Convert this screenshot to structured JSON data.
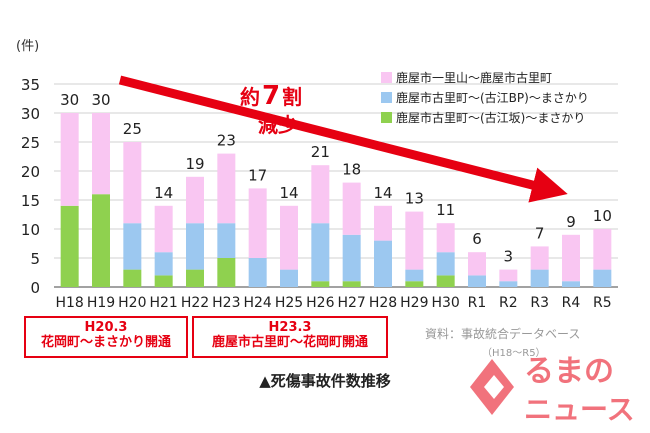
{
  "chart_data": {
    "type": "bar",
    "stacked": true,
    "y_unit": "(件)",
    "categories": [
      "H18",
      "H19",
      "H20",
      "H21",
      "H22",
      "H23",
      "H24",
      "H25",
      "H26",
      "H27",
      "H28",
      "H29",
      "H30",
      "R1",
      "R2",
      "R3",
      "R4",
      "R5"
    ],
    "totals": [
      30,
      30,
      25,
      14,
      19,
      23,
      17,
      14,
      21,
      18,
      14,
      13,
      11,
      6,
      3,
      7,
      9,
      10
    ],
    "series": [
      {
        "name": "鹿屋市古里町～(古江坂)～まさかり",
        "color": "#8fd14f",
        "values": [
          14,
          16,
          3,
          2,
          3,
          5,
          0,
          0,
          1,
          1,
          0,
          1,
          2,
          0,
          0,
          0,
          0,
          0
        ]
      },
      {
        "name": "鹿屋市古里町～(古江BP)～まさかり",
        "color": "#9cc8f0",
        "values": [
          0,
          0,
          8,
          4,
          8,
          6,
          5,
          3,
          10,
          8,
          8,
          2,
          4,
          2,
          1,
          3,
          1,
          3
        ]
      },
      {
        "name": "鹿屋市一里山～鹿屋市古里町",
        "color": "#f9c6f2",
        "values": [
          16,
          14,
          14,
          8,
          8,
          12,
          12,
          11,
          10,
          9,
          6,
          10,
          5,
          4,
          2,
          4,
          8,
          7
        ]
      }
    ],
    "ylim": [
      0,
      35
    ],
    "yticks": [
      0,
      5,
      10,
      15,
      20,
      25,
      30,
      35
    ],
    "grid": true,
    "legend_position": "top-right",
    "annotation": {
      "main": "約",
      "number": "7",
      "unit": "割",
      "sub": "減少",
      "color": "#e60012"
    }
  },
  "notes": {
    "h20": {
      "era": "H20.3",
      "text": "花岡町～まさかり開通"
    },
    "h23": {
      "era": "H23.3",
      "text": "鹿屋市古里町～花岡町開通"
    }
  },
  "source": {
    "line1": "資料：事故統合データベース",
    "line2": "（H18～R5）"
  },
  "caption": "▲死傷事故件数推移",
  "logo": {
    "line1": "るまの",
    "line2": "ニュース"
  }
}
